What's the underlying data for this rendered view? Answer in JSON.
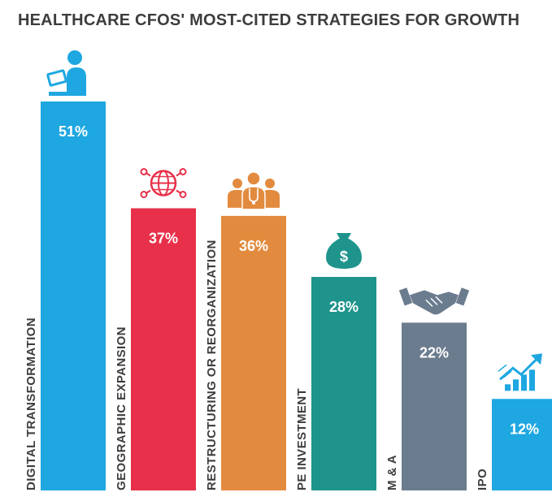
{
  "chart_data": {
    "type": "bar",
    "title": "HEALTHCARE CFOS' MOST-CITED STRATEGIES FOR GROWTH",
    "categories": [
      "DIGITAL TRANSFORMATION",
      "GEOGRAPHIC EXPANSION",
      "RESTRUCTURING OR REORGANIZATION",
      "PE INVESTMENT",
      "M & A",
      "IPO"
    ],
    "values": [
      51,
      37,
      36,
      28,
      22,
      12
    ],
    "value_labels": [
      "51%",
      "37%",
      "36%",
      "28%",
      "22%",
      "12%"
    ],
    "colors": [
      "#1ea7e1",
      "#e8304a",
      "#e28b3e",
      "#1e948c",
      "#6b7c8f",
      "#1ea7e1"
    ],
    "icons": [
      "person-laptop-icon",
      "globe-network-icon",
      "medical-team-icon",
      "money-bag-icon",
      "handshake-icon",
      "growth-chart-icon"
    ],
    "icon_text": {
      "money_bag": "$"
    },
    "ylim": [
      0,
      51
    ],
    "xlabel": "",
    "ylabel": "",
    "grid": false,
    "legend": "none"
  }
}
